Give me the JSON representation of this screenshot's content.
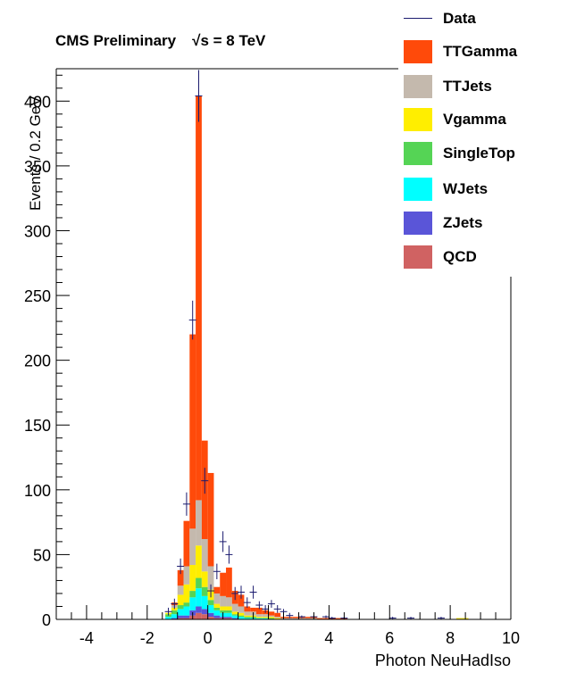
{
  "header": {
    "experiment": "CMS Preliminary",
    "energy": "√s = 8 TeV"
  },
  "legend": {
    "items": [
      {
        "name": "Data",
        "type": "line",
        "color": "#1a1a6e"
      },
      {
        "name": "TTGamma",
        "type": "fill",
        "color": "#ff4a0a"
      },
      {
        "name": "TTJets",
        "type": "fill",
        "color": "#c4b9ad"
      },
      {
        "name": "Vgamma",
        "type": "fill",
        "color": "#ffee00"
      },
      {
        "name": "SingleTop",
        "type": "fill",
        "color": "#55d455"
      },
      {
        "name": "WJets",
        "type": "fill",
        "color": "#00ffff"
      },
      {
        "name": "ZJets",
        "type": "fill",
        "color": "#5a55d8"
      },
      {
        "name": "QCD",
        "type": "fill",
        "color": "#d06262"
      }
    ]
  },
  "chart_data": {
    "type": "bar",
    "stacked": true,
    "title": "CMS Preliminary   √s = 8 TeV",
    "xlabel": "Photon NeuHadIso",
    "ylabel": "Events / 0.2 GeV",
    "xlim": [
      -5,
      10
    ],
    "ylim": [
      0,
      425
    ],
    "xticks": [
      -4,
      -2,
      0,
      2,
      4,
      6,
      8,
      10
    ],
    "yticks": [
      0,
      50,
      100,
      150,
      200,
      250,
      300,
      350,
      400
    ],
    "bin_width": 0.2,
    "bin_edges_start": [
      -1.4,
      -1.2,
      -1.0,
      -0.8,
      -0.6,
      -0.4,
      -0.2,
      0.0,
      0.2,
      0.4,
      0.6,
      0.8,
      1.0,
      1.2,
      1.4,
      1.6,
      1.8,
      2.0,
      2.2,
      2.4,
      2.6,
      2.8,
      3.0,
      3.2,
      3.4,
      3.6,
      3.8,
      4.0,
      4.2,
      4.4,
      4.6,
      4.8,
      5.0,
      6.0,
      7.0,
      8.2,
      8.4
    ],
    "series": [
      {
        "name": "QCD",
        "color": "#d06262",
        "values": [
          0,
          0,
          1,
          1,
          3,
          5,
          4,
          2,
          1,
          1,
          1,
          0,
          0,
          0,
          0,
          0,
          0,
          0,
          0,
          0,
          0,
          0,
          0,
          0,
          0,
          0,
          0,
          0,
          0,
          0,
          0,
          0,
          0,
          0,
          0,
          0,
          0
        ]
      },
      {
        "name": "ZJets",
        "color": "#5a55d8",
        "values": [
          0,
          1,
          2,
          2,
          4,
          5,
          4,
          3,
          2,
          1,
          1,
          1,
          0,
          0,
          0,
          0,
          0,
          0,
          0,
          0,
          0,
          0,
          0,
          0,
          0,
          0,
          0,
          0,
          0,
          0,
          0,
          0,
          0,
          0,
          0,
          0,
          0
        ]
      },
      {
        "name": "WJets",
        "color": "#00ffff",
        "values": [
          2,
          3,
          5,
          7,
          10,
          14,
          10,
          6,
          4,
          3,
          3,
          2,
          2,
          1,
          1,
          1,
          1,
          0,
          0,
          0,
          0,
          0,
          0,
          0,
          0,
          0,
          0,
          0,
          0,
          0,
          0,
          0,
          0,
          0,
          0,
          0,
          0
        ]
      },
      {
        "name": "SingleTop",
        "color": "#55d455",
        "values": [
          2,
          3,
          3,
          3,
          5,
          8,
          7,
          4,
          2,
          2,
          2,
          1,
          1,
          1,
          1,
          0,
          0,
          1,
          0,
          0,
          0,
          0,
          0,
          0,
          0,
          0,
          0,
          0,
          0,
          0,
          0,
          0,
          0,
          0,
          0,
          0,
          0
        ]
      },
      {
        "name": "Vgamma",
        "color": "#ffee00",
        "values": [
          1,
          2,
          8,
          14,
          20,
          25,
          12,
          8,
          3,
          3,
          3,
          2,
          2,
          1,
          1,
          1,
          1,
          1,
          1,
          0,
          0,
          0,
          0,
          0,
          0,
          0,
          0,
          0,
          0,
          0,
          0,
          0,
          0,
          0,
          0,
          1,
          1
        ]
      },
      {
        "name": "TTJets",
        "color": "#c4b9ad",
        "values": [
          0,
          2,
          7,
          14,
          28,
          35,
          25,
          18,
          8,
          8,
          7,
          6,
          5,
          3,
          3,
          2,
          2,
          1,
          1,
          1,
          1,
          1,
          1,
          1,
          1,
          0,
          0,
          0,
          0,
          0,
          0,
          0,
          0,
          0,
          0,
          0,
          0
        ]
      },
      {
        "name": "TTGamma",
        "color": "#ff4a0a",
        "values": [
          0,
          2,
          12,
          35,
          150,
          312,
          76,
          72,
          5,
          18,
          23,
          10,
          9,
          4,
          3,
          5,
          3,
          3,
          3,
          1,
          1,
          1,
          1,
          1,
          1,
          1,
          1,
          1,
          1,
          1,
          0,
          0,
          0,
          0,
          0,
          0,
          0
        ]
      }
    ],
    "data_points": [
      {
        "x": -1.3,
        "y": 6,
        "err": 3
      },
      {
        "x": -1.1,
        "y": 12,
        "err": 4
      },
      {
        "x": -0.9,
        "y": 41,
        "err": 6
      },
      {
        "x": -0.7,
        "y": 89,
        "err": 9
      },
      {
        "x": -0.5,
        "y": 231,
        "err": 15
      },
      {
        "x": -0.3,
        "y": 404,
        "err": 20
      },
      {
        "x": -0.1,
        "y": 107,
        "err": 10
      },
      {
        "x": 0.1,
        "y": 22,
        "err": 5
      },
      {
        "x": 0.3,
        "y": 37,
        "err": 6
      },
      {
        "x": 0.5,
        "y": 60,
        "err": 8
      },
      {
        "x": 0.7,
        "y": 50,
        "err": 7
      },
      {
        "x": 0.9,
        "y": 20,
        "err": 5
      },
      {
        "x": 1.1,
        "y": 21,
        "err": 5
      },
      {
        "x": 1.3,
        "y": 13,
        "err": 4
      },
      {
        "x": 1.5,
        "y": 21,
        "err": 5
      },
      {
        "x": 1.7,
        "y": 11,
        "err": 3
      },
      {
        "x": 1.9,
        "y": 8,
        "err": 3
      },
      {
        "x": 2.1,
        "y": 12,
        "err": 3
      },
      {
        "x": 2.3,
        "y": 8,
        "err": 3
      },
      {
        "x": 2.5,
        "y": 6,
        "err": 2
      },
      {
        "x": 2.7,
        "y": 3,
        "err": 2
      },
      {
        "x": 3.1,
        "y": 2,
        "err": 1
      },
      {
        "x": 3.5,
        "y": 2,
        "err": 1
      },
      {
        "x": 3.9,
        "y": 2,
        "err": 1
      },
      {
        "x": 4.1,
        "y": 1,
        "err": 1
      },
      {
        "x": 4.5,
        "y": 1,
        "err": 1
      },
      {
        "x": 6.1,
        "y": 1,
        "err": 1
      },
      {
        "x": 6.7,
        "y": 1,
        "err": 1
      },
      {
        "x": 7.7,
        "y": 1,
        "err": 1
      }
    ]
  }
}
